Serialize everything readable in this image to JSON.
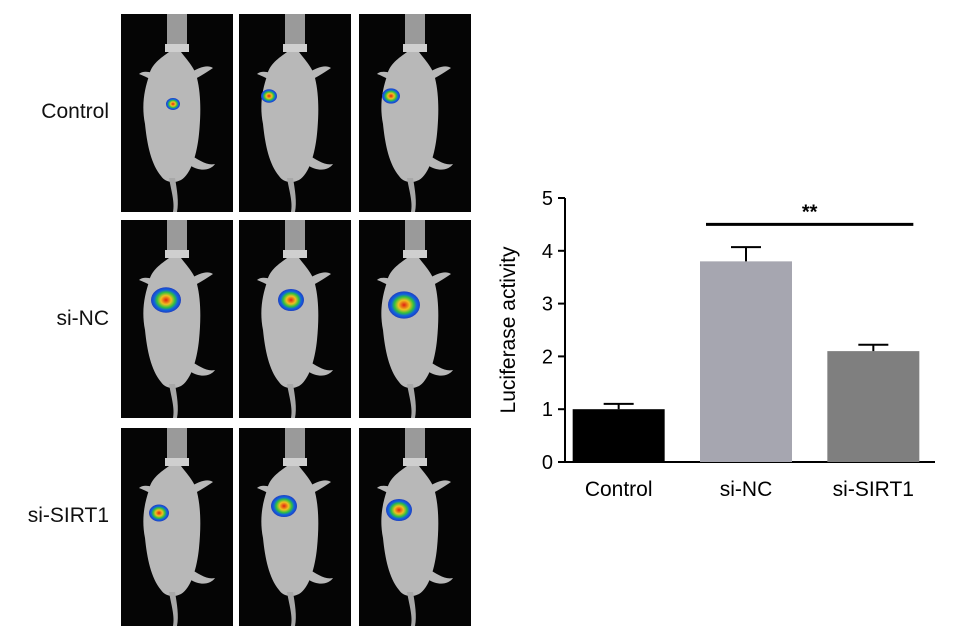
{
  "figure": {
    "row_labels": [
      "Control",
      "si-NC",
      "si-SIRT1"
    ],
    "panel_colors": {
      "background": "#050505",
      "mouse": "#b8b8b8",
      "clamp": "#9a9a9a"
    }
  },
  "chart_data": {
    "type": "bar",
    "categories": [
      "Control",
      "si-NC",
      "si-SIRT1"
    ],
    "values": [
      1.0,
      3.8,
      2.1
    ],
    "errors": [
      0.1,
      0.27,
      0.12
    ],
    "bar_colors": [
      "#000000",
      "#a6a6b0",
      "#7f7f7f"
    ],
    "ylabel": "Luciferase activity",
    "ylim": [
      0,
      5
    ],
    "yticks": [
      0,
      1,
      2,
      3,
      4,
      5
    ],
    "grid": false,
    "significance": {
      "from": 1,
      "to": 2,
      "label": "**"
    }
  }
}
